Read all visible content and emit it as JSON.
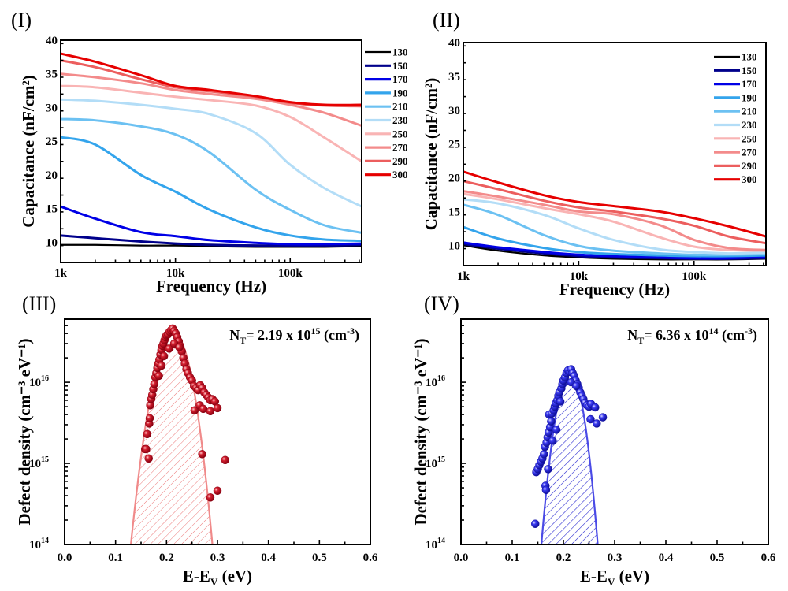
{
  "chart_data": [
    {
      "id": "I",
      "panel_label": "(I)",
      "type": "line",
      "xlabel": "Frequency (Hz)",
      "ylabel": "Capacitance (nF/cm²)",
      "xscale": "log",
      "xlim": [
        1000,
        420000
      ],
      "ylim": [
        7,
        40
      ],
      "xticks": [
        1000,
        10000,
        100000
      ],
      "xtick_labels": [
        "1k",
        "10k",
        "100k"
      ],
      "yticks": [
        10,
        15,
        20,
        25,
        30,
        35,
        40
      ],
      "ytick_labels": [
        "10",
        "15",
        "20",
        "25",
        "30",
        "35",
        "40"
      ],
      "legend_position": "outside-right",
      "x": [
        1000,
        2000,
        5000,
        10000,
        20000,
        50000,
        100000,
        200000,
        420000
      ],
      "series": [
        {
          "name": "130",
          "color": "#000000",
          "values": [
            9.6,
            9.6,
            9.5,
            9.5,
            9.4,
            9.3,
            9.3,
            9.3,
            9.4
          ]
        },
        {
          "name": "150",
          "color": "#00008b",
          "values": [
            11.0,
            10.6,
            10.1,
            9.8,
            9.6,
            9.5,
            9.5,
            9.5,
            9.6
          ]
        },
        {
          "name": "170",
          "color": "#0000e6",
          "values": [
            15.3,
            13.5,
            11.5,
            10.9,
            10.3,
            9.9,
            9.7,
            9.7,
            9.8
          ]
        },
        {
          "name": "190",
          "color": "#33a4ec",
          "values": [
            25.6,
            24.5,
            20.0,
            17.5,
            14.8,
            12.2,
            11.0,
            10.4,
            10.2
          ]
        },
        {
          "name": "210",
          "color": "#6cc1f2",
          "values": [
            28.3,
            28.1,
            27.2,
            26.0,
            23.3,
            17.8,
            14.8,
            12.5,
            11.4
          ]
        },
        {
          "name": "230",
          "color": "#b3ddf7",
          "values": [
            31.2,
            31.0,
            30.4,
            29.8,
            29.0,
            26.2,
            21.5,
            18.0,
            15.3
          ]
        },
        {
          "name": "250",
          "color": "#f9b4b4",
          "values": [
            33.2,
            33.0,
            32.2,
            31.6,
            31.1,
            30.3,
            28.6,
            25.5,
            22.0
          ]
        },
        {
          "name": "270",
          "color": "#f38b8b",
          "values": [
            35.0,
            34.5,
            33.6,
            32.6,
            32.0,
            31.3,
            30.4,
            29.2,
            27.3
          ]
        },
        {
          "name": "290",
          "color": "#ec5e5e",
          "values": [
            37.0,
            36.0,
            34.2,
            33.0,
            32.4,
            31.6,
            30.7,
            30.3,
            30.2
          ]
        },
        {
          "name": "300",
          "color": "#e60000",
          "values": [
            38.0,
            36.8,
            34.8,
            33.2,
            32.6,
            31.7,
            30.8,
            30.4,
            30.4
          ]
        }
      ]
    },
    {
      "id": "II",
      "panel_label": "(II)",
      "type": "line",
      "xlabel": "Frequency (Hz)",
      "ylabel": "Capacitance (nF/cm²)",
      "xscale": "log",
      "xlim": [
        1000,
        420000
      ],
      "ylim": [
        7,
        40
      ],
      "xticks": [
        1000,
        10000,
        100000
      ],
      "xtick_labels": [
        "1k",
        "10k",
        "100k"
      ],
      "yticks": [
        10,
        15,
        20,
        25,
        30,
        35,
        40
      ],
      "ytick_labels": [
        "10",
        "15",
        "20",
        "25",
        "30",
        "35",
        "40"
      ],
      "legend_position": "top-right",
      "x": [
        1000,
        2000,
        5000,
        10000,
        20000,
        50000,
        100000,
        200000,
        420000
      ],
      "series": [
        {
          "name": "130",
          "color": "#000000",
          "values": [
            10.0,
            9.2,
            8.5,
            8.2,
            8.0,
            7.9,
            7.9,
            7.9,
            8.0
          ]
        },
        {
          "name": "150",
          "color": "#00008b",
          "values": [
            10.2,
            9.5,
            8.8,
            8.4,
            8.2,
            8.1,
            8.0,
            8.0,
            8.1
          ]
        },
        {
          "name": "170",
          "color": "#0000e6",
          "values": [
            10.4,
            9.7,
            9.0,
            8.6,
            8.4,
            8.2,
            8.1,
            8.1,
            8.3
          ]
        },
        {
          "name": "190",
          "color": "#33a4ec",
          "values": [
            12.7,
            11.0,
            9.6,
            9.0,
            8.7,
            8.5,
            8.4,
            8.4,
            8.5
          ]
        },
        {
          "name": "210",
          "color": "#6cc1f2",
          "values": [
            16.0,
            14.5,
            11.5,
            9.9,
            9.2,
            8.8,
            8.6,
            8.6,
            8.7
          ]
        },
        {
          "name": "230",
          "color": "#b3ddf7",
          "values": [
            16.8,
            16.2,
            14.5,
            12.5,
            10.8,
            9.4,
            9.0,
            8.8,
            8.9
          ]
        },
        {
          "name": "250",
          "color": "#f9b4b4",
          "values": [
            17.6,
            16.8,
            15.5,
            14.6,
            13.5,
            11.2,
            9.8,
            9.3,
            9.2
          ]
        },
        {
          "name": "270",
          "color": "#f38b8b",
          "values": [
            18.0,
            17.2,
            16.0,
            15.0,
            14.6,
            13.0,
            10.8,
            9.6,
            9.3
          ]
        },
        {
          "name": "290",
          "color": "#ec5e5e",
          "values": [
            19.5,
            18.3,
            16.6,
            15.6,
            15.0,
            14.0,
            12.9,
            11.3,
            10.3
          ]
        },
        {
          "name": "300",
          "color": "#e60000",
          "values": [
            20.9,
            19.3,
            17.4,
            16.4,
            15.8,
            15.0,
            14.0,
            12.8,
            11.3
          ]
        }
      ]
    },
    {
      "id": "III",
      "panel_label": "(III)",
      "type": "scatter",
      "xlabel": "E-E_V (eV)",
      "ylabel": "Defect density (cm⁻³ eV⁻¹)",
      "yscale": "log",
      "xlim": [
        0.0,
        0.6
      ],
      "ylim": [
        100000000000000.0,
        6e+16
      ],
      "xticks": [
        0.0,
        0.1,
        0.2,
        0.3,
        0.4,
        0.5,
        0.6
      ],
      "xtick_labels": [
        "0.0",
        "0.1",
        "0.2",
        "0.3",
        "0.4",
        "0.5",
        "0.6"
      ],
      "yticks": [
        100000000000000.0,
        1000000000000000.0,
        1e+16
      ],
      "ytick_labels": [
        {
          "base": "10",
          "exp": "14"
        },
        {
          "base": "10",
          "exp": "15"
        },
        {
          "base": "10",
          "exp": "16"
        }
      ],
      "annotation": {
        "prefix": "N",
        "sub": "T",
        "text": "= 2.19 x 10",
        "exp": "15",
        "unit": " (cm",
        "unit_exp": "-3",
        "close": ")"
      },
      "color": "#c0101c",
      "fit_color": "#f08a8a",
      "fit": {
        "type": "gaussian-hatched",
        "center": 0.215,
        "peak": 4e+16,
        "x_low_at_ymin": 0.13,
        "x_high_at_ymin": 0.29
      },
      "points": [
        [
          0.158,
          1500000000000000.0
        ],
        [
          0.16,
          1500000000000000.0
        ],
        [
          0.162,
          2300000000000000.0
        ],
        [
          0.165,
          1150000000000000.0
        ],
        [
          0.166,
          3100000000000000.0
        ],
        [
          0.167,
          3600000000000000.0
        ],
        [
          0.168,
          5200000000000000.0
        ],
        [
          0.17,
          6200000000000000.0
        ],
        [
          0.172,
          7000000000000000.0
        ],
        [
          0.174,
          8200000000000000.0
        ],
        [
          0.176,
          9500000000000000.0
        ],
        [
          0.178,
          1.15e+16
        ],
        [
          0.18,
          1.3e+16
        ],
        [
          0.182,
          1.5e+16
        ],
        [
          0.184,
          1.7e+16
        ],
        [
          0.186,
          1.9e+16
        ],
        [
          0.188,
          2.2e+16
        ],
        [
          0.19,
          2.5e+16
        ],
        [
          0.192,
          2.8e+16
        ],
        [
          0.194,
          3e+16
        ],
        [
          0.196,
          3.3e+16
        ],
        [
          0.198,
          3.6e+16
        ],
        [
          0.2,
          3.8e+16
        ],
        [
          0.203,
          3.9e+16
        ],
        [
          0.206,
          4.2e+16
        ],
        [
          0.209,
          4.4e+16
        ],
        [
          0.212,
          4.6e+16
        ],
        [
          0.215,
          4.3e+16
        ],
        [
          0.218,
          4e+16
        ],
        [
          0.221,
          3.6e+16
        ],
        [
          0.224,
          3.2e+16
        ],
        [
          0.227,
          2.8e+16
        ],
        [
          0.23,
          2.4e+16
        ],
        [
          0.233,
          2e+16
        ],
        [
          0.236,
          1.7e+16
        ],
        [
          0.239,
          1.45e+16
        ],
        [
          0.242,
          1.3e+16
        ],
        [
          0.246,
          1.15e+16
        ],
        [
          0.25,
          1.05e+16
        ],
        [
          0.254,
          9000000000000000.0
        ],
        [
          0.258,
          8500000000000000.0
        ],
        [
          0.262,
          8000000000000000.0
        ],
        [
          0.266,
          9200000000000000.0
        ],
        [
          0.27,
          8500000000000000.0
        ],
        [
          0.274,
          7500000000000000.0
        ],
        [
          0.278,
          7000000000000000.0
        ],
        [
          0.282,
          6500000000000000.0
        ],
        [
          0.286,
          6000000000000000.0
        ],
        [
          0.29,
          6200000000000000.0
        ],
        [
          0.295,
          5800000000000000.0
        ],
        [
          0.255,
          4500000000000000.0
        ],
        [
          0.265,
          5200000000000000.0
        ],
        [
          0.272,
          4700000000000000.0
        ],
        [
          0.286,
          4400000000000000.0
        ],
        [
          0.3,
          4800000000000000.0
        ],
        [
          0.27,
          1300000000000000.0
        ],
        [
          0.315,
          1100000000000000.0
        ],
        [
          0.3,
          460000000000000.0
        ],
        [
          0.286,
          380000000000000.0
        ],
        [
          0.185,
          1.2e+16
        ],
        [
          0.195,
          2.1e+16
        ],
        [
          0.205,
          2.6e+16
        ],
        [
          0.215,
          3e+16
        ],
        [
          0.225,
          2.7e+16
        ],
        [
          0.19,
          1.6e+16
        ]
      ]
    },
    {
      "id": "IV",
      "panel_label": "(IV)",
      "type": "scatter",
      "xlabel": "E-E_V (eV)",
      "ylabel": "Defect density (cm⁻³ eV⁻¹)",
      "yscale": "log",
      "xlim": [
        0.0,
        0.6
      ],
      "ylim": [
        100000000000000.0,
        6e+16
      ],
      "xticks": [
        0.0,
        0.1,
        0.2,
        0.3,
        0.4,
        0.5,
        0.6
      ],
      "xtick_labels": [
        "0.0",
        "0.1",
        "0.2",
        "0.3",
        "0.4",
        "0.5",
        "0.6"
      ],
      "yticks": [
        100000000000000.0,
        1000000000000000.0,
        1e+16
      ],
      "ytick_labels": [
        {
          "base": "10",
          "exp": "14"
        },
        {
          "base": "10",
          "exp": "15"
        },
        {
          "base": "10",
          "exp": "16"
        }
      ],
      "annotation": {
        "prefix": "N",
        "sub": "T",
        "text": "= 6.36 x 10",
        "exp": "14",
        "unit": " (cm",
        "unit_exp": "-3",
        "close": ")"
      },
      "color": "#2a2ae0",
      "fit_color": "#4a4ae6",
      "fit": {
        "type": "gaussian-hatched",
        "center": 0.213,
        "peak": 1.3e+16,
        "x_low_at_ymin": 0.157,
        "x_high_at_ymin": 0.267
      },
      "points": [
        [
          0.145,
          180000000000000.0
        ],
        [
          0.147,
          780000000000000.0
        ],
        [
          0.15,
          850000000000000.0
        ],
        [
          0.153,
          950000000000000.0
        ],
        [
          0.156,
          1050000000000000.0
        ],
        [
          0.159,
          1150000000000000.0
        ],
        [
          0.162,
          1300000000000000.0
        ],
        [
          0.164,
          1600000000000000.0
        ],
        [
          0.165,
          530000000000000.0
        ],
        [
          0.166,
          470000000000000.0
        ],
        [
          0.167,
          1800000000000000.0
        ],
        [
          0.169,
          2100000000000000.0
        ],
        [
          0.17,
          850000000000000.0
        ],
        [
          0.171,
          2400000000000000.0
        ],
        [
          0.172,
          4000000000000000.0
        ],
        [
          0.174,
          2800000000000000.0
        ],
        [
          0.176,
          3300000000000000.0
        ],
        [
          0.177,
          4100000000000000.0
        ],
        [
          0.179,
          1900000000000000.0
        ],
        [
          0.181,
          4500000000000000.0
        ],
        [
          0.183,
          5000000000000000.0
        ],
        [
          0.185,
          5500000000000000.0
        ],
        [
          0.186,
          2600000000000000.0
        ],
        [
          0.188,
          6000000000000000.0
        ],
        [
          0.19,
          6800000000000000.0
        ],
        [
          0.192,
          7500000000000000.0
        ],
        [
          0.194,
          5800000000000000.0
        ],
        [
          0.196,
          8400000000000000.0
        ],
        [
          0.198,
          9500000000000000.0
        ],
        [
          0.2,
          1.05e+16
        ],
        [
          0.203,
          1.15e+16
        ],
        [
          0.206,
          1.3e+16
        ],
        [
          0.209,
          1.4e+16
        ],
        [
          0.212,
          1.35e+16
        ],
        [
          0.215,
          1.45e+16
        ],
        [
          0.218,
          1.3e+16
        ],
        [
          0.221,
          1.2e+16
        ],
        [
          0.224,
          1.05e+16
        ],
        [
          0.227,
          9500000000000000.0
        ],
        [
          0.23,
          8500000000000000.0
        ],
        [
          0.233,
          7500000000000000.0
        ],
        [
          0.236,
          6800000000000000.0
        ],
        [
          0.239,
          6200000000000000.0
        ],
        [
          0.242,
          5600000000000000.0
        ],
        [
          0.246,
          5200000000000000.0
        ],
        [
          0.25,
          5000000000000000.0
        ],
        [
          0.254,
          5400000000000000.0
        ],
        [
          0.262,
          4900000000000000.0
        ],
        [
          0.253,
          3500000000000000.0
        ],
        [
          0.265,
          3100000000000000.0
        ],
        [
          0.277,
          3700000000000000.0
        ],
        [
          0.215,
          1e+16
        ],
        [
          0.225,
          9000000000000000.0
        ]
      ]
    }
  ]
}
